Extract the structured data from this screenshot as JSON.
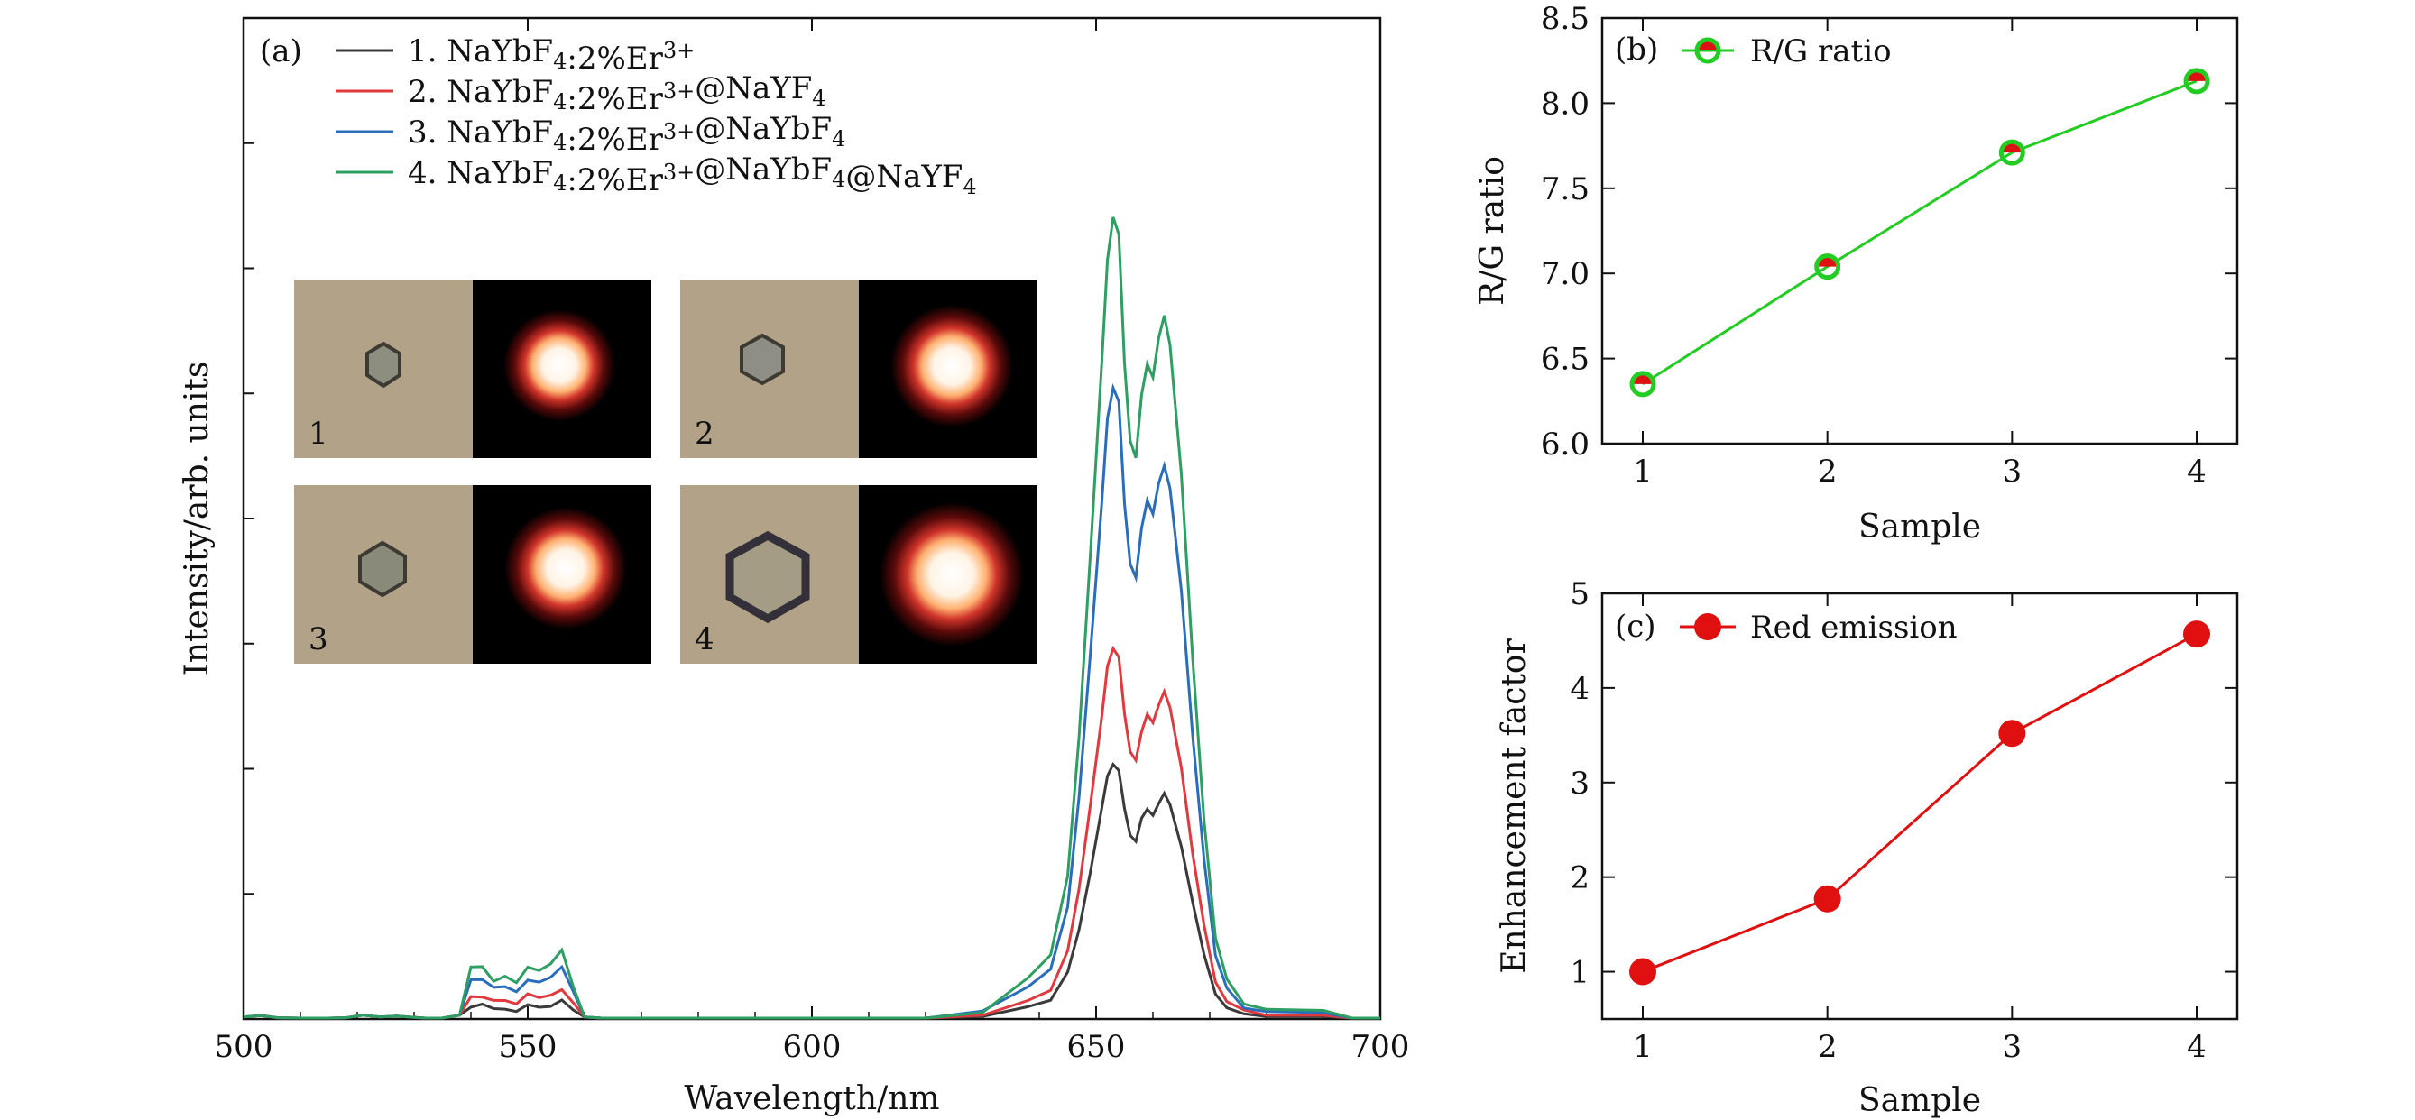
{
  "chart_data": [
    {
      "panel": "(a)",
      "type": "line",
      "xlabel": "Wavelength/nm",
      "ylabel": "Intensity/arb. units",
      "xlim": [
        500,
        700
      ],
      "ylim": [
        0,
        800
      ],
      "x_ticks": [
        500,
        550,
        600,
        650,
        700
      ],
      "series": [
        {
          "name": "1. NaYbF4:2%Er3+",
          "label": {
            "n": "1.",
            "a": " NaYbF",
            "b": "4",
            "c": ":2%Er",
            "d": "3+",
            "e": "",
            "f": "",
            "g": "",
            "h": ""
          },
          "color": "#3a3a3a",
          "scale": 0.255,
          "green_scale": 0.018
        },
        {
          "name": "2. NaYbF4:2%Er3+@NaYF4",
          "label": {
            "n": "2.",
            "a": " NaYbF",
            "b": "4",
            "c": ":2%Er",
            "d": "3+",
            "e": "@NaYF",
            "f": "4",
            "g": "",
            "h": ""
          },
          "color": "#e03a3e",
          "scale": 0.37,
          "green_scale": 0.032
        },
        {
          "name": "3. NaYbF4:2%Er3+@NaYbF4",
          "label": {
            "n": "3.",
            "a": " NaYbF",
            "b": "4",
            "c": ":2%Er",
            "d": "3+",
            "e": "@NaYbF",
            "f": "4",
            "g": "",
            "h": ""
          },
          "color": "#2a6ebb",
          "scale": 0.63,
          "green_scale": 0.055
        },
        {
          "name": "4. NaYbF4:2%Er3+@NaYbF4@NaYF4",
          "label": {
            "n": "4.",
            "a": " NaYbF",
            "b": "4",
            "c": ":2%Er",
            "d": "3+",
            "e": "@NaYbF",
            "f": "4",
            "g": "@NaYF",
            "h": "4"
          },
          "color": "#2e9e62",
          "scale": 0.8,
          "green_scale": 0.072
        }
      ],
      "peak_shape": {
        "x": [
          500,
          503,
          506,
          510,
          515,
          518,
          521,
          524,
          527,
          529,
          532,
          535,
          538,
          540,
          542,
          544,
          546,
          548,
          550,
          552,
          554,
          556,
          558,
          560,
          563,
          568,
          580,
          600,
          620,
          630,
          638,
          642,
          645,
          647,
          649,
          651,
          652,
          653,
          654,
          655,
          656,
          657,
          658,
          659,
          660,
          661,
          662,
          663,
          665,
          667,
          669,
          671,
          673,
          676,
          680,
          690,
          695,
          700
        ],
        "y": [
          0.08,
          0.14,
          0.05,
          0.01,
          0.02,
          0.05,
          0.15,
          0.08,
          0.12,
          0.08,
          0.03,
          0.04,
          0.15,
          0.68,
          0.7,
          0.52,
          0.55,
          0.48,
          0.7,
          0.62,
          0.72,
          0.92,
          0.45,
          0.08,
          0.02,
          0.01,
          0.0,
          0.0,
          0.0,
          0.01,
          0.05,
          0.08,
          0.18,
          0.35,
          0.58,
          0.82,
          0.95,
          1.0,
          0.98,
          0.82,
          0.72,
          0.7,
          0.78,
          0.82,
          0.8,
          0.85,
          0.88,
          0.84,
          0.68,
          0.45,
          0.25,
          0.1,
          0.05,
          0.02,
          0.01,
          0.01,
          0.0,
          0.0
        ]
      },
      "insets": [
        "1",
        "2",
        "3",
        "4"
      ]
    },
    {
      "panel": "(b)",
      "type": "line",
      "xlabel": "Sample",
      "ylabel": "R/G ratio",
      "categories": [
        1,
        2,
        3,
        4
      ],
      "values": [
        6.35,
        7.04,
        7.71,
        8.13
      ],
      "ylim": [
        6.0,
        8.5
      ],
      "y_ticks": [
        "6.0",
        "6.5",
        "7.0",
        "7.5",
        "8.0",
        "8.5"
      ],
      "x_ticks": [
        "1",
        "2",
        "3",
        "4"
      ],
      "legend": "R/G ratio",
      "color": "#22cc22",
      "marker_fill": "#dd1111"
    },
    {
      "panel": "(c)",
      "type": "line",
      "xlabel": "Sample",
      "ylabel": "Enhancement factor",
      "categories": [
        1,
        2,
        3,
        4
      ],
      "values": [
        1.0,
        1.77,
        3.52,
        4.57
      ],
      "ylim": [
        0.5,
        5
      ],
      "y_ticks": [
        "1",
        "2",
        "3",
        "4",
        "5"
      ],
      "x_ticks": [
        "1",
        "2",
        "3",
        "4"
      ],
      "legend": "Red emission",
      "color": "#e01010"
    }
  ]
}
